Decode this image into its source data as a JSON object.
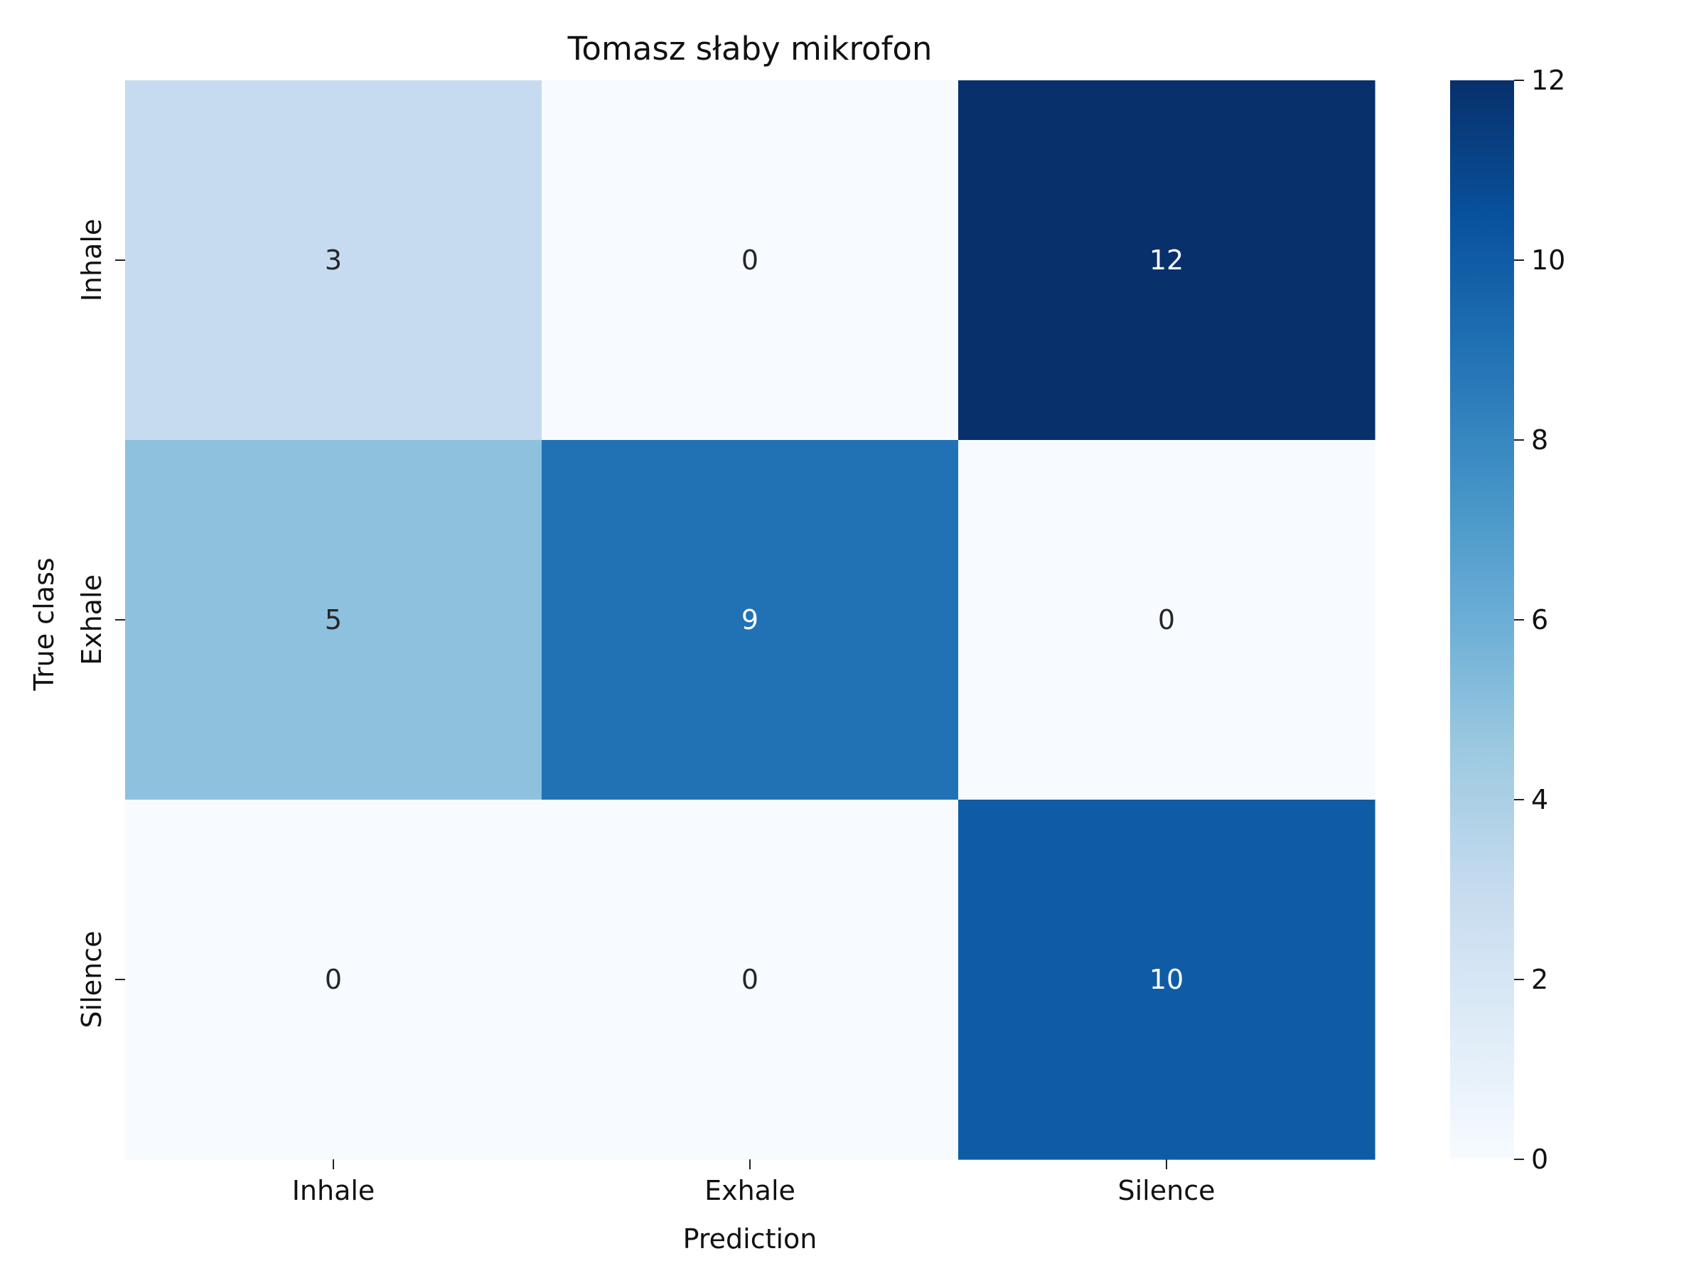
{
  "chart_data": {
    "type": "heatmap",
    "title": "Tomasz słaby mikrofon",
    "xlabel": "Prediction",
    "ylabel": "True class",
    "x_categories": [
      "Inhale",
      "Exhale",
      "Silence"
    ],
    "y_categories": [
      "Inhale",
      "Exhale",
      "Silence"
    ],
    "values": [
      [
        3,
        0,
        12
      ],
      [
        5,
        9,
        0
      ],
      [
        0,
        0,
        10
      ]
    ],
    "colorbar": {
      "range": [
        0,
        12
      ],
      "ticks": [
        "0",
        "2",
        "4",
        "6",
        "8",
        "10",
        "12"
      ],
      "colormap": "Blues"
    }
  }
}
